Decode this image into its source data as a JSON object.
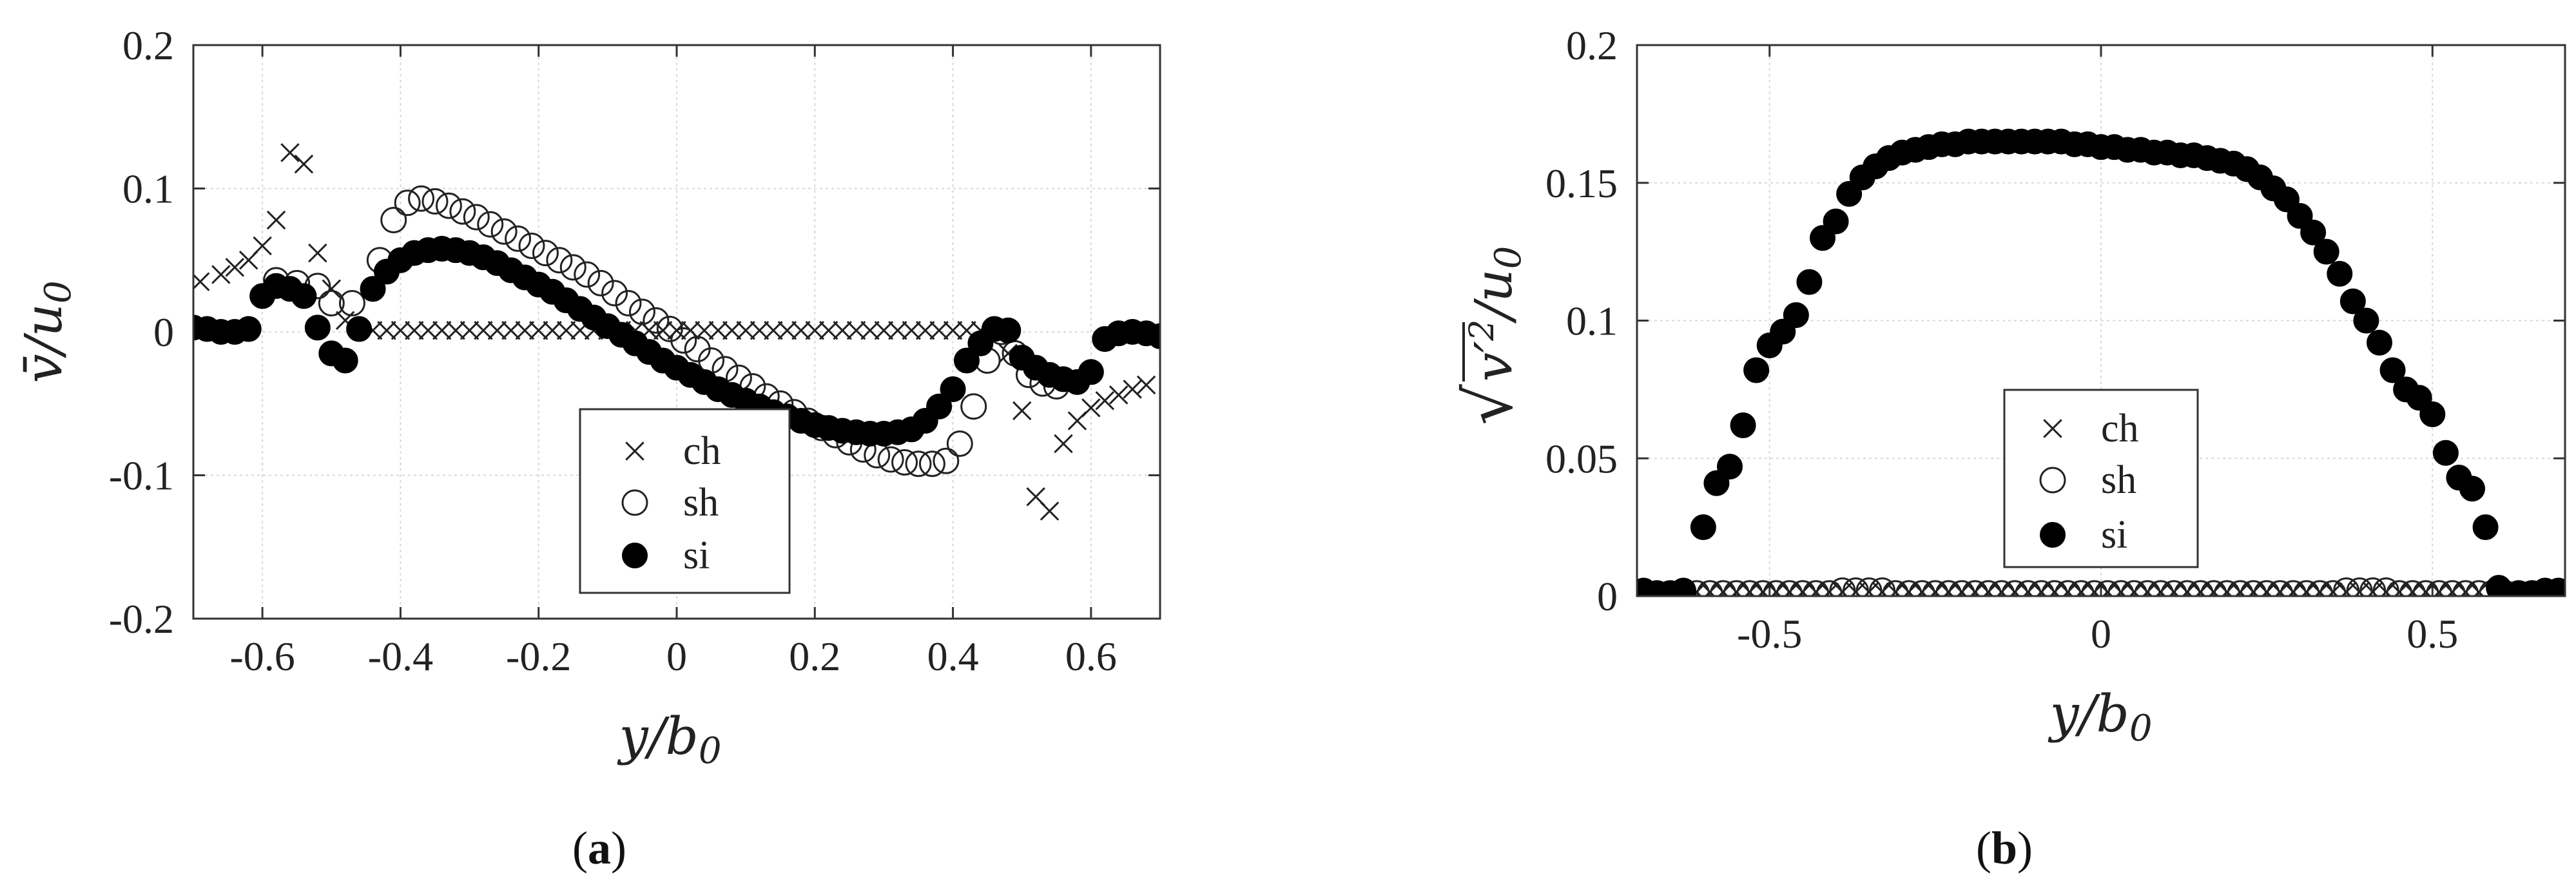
{
  "figure": {
    "panel_a": {
      "open": "(",
      "letter": "a",
      "close": ")"
    },
    "panel_b": {
      "open": "(",
      "letter": "b",
      "close": ")"
    }
  },
  "chart_data": [
    {
      "id": "a",
      "type": "scatter",
      "xlabel": "y/b0",
      "ylabel": "v̄/u0",
      "xlim": [
        -0.7,
        0.7
      ],
      "ylim": [
        -0.2,
        0.2
      ],
      "xticks": [
        -0.6,
        -0.4,
        -0.2,
        0,
        0.2,
        0.4,
        0.6
      ],
      "xtick_labels": [
        "-0.6",
        "-0.4",
        "-0.2",
        "0",
        "0.2",
        "0.4",
        "0.6"
      ],
      "yticks": [
        0.2,
        0.1,
        0,
        -0.1,
        -0.2
      ],
      "ytick_labels": [
        "0.2",
        "0.1",
        "0",
        "-0.1",
        "-0.2"
      ],
      "grid": true,
      "legend_position": "lower-center",
      "series": [
        {
          "name": "ch",
          "marker": "x",
          "x": [
            -0.69,
            -0.66,
            -0.64,
            -0.62,
            -0.6,
            -0.58,
            -0.56,
            -0.54,
            -0.52,
            -0.5,
            -0.48,
            -0.46,
            -0.44,
            -0.42,
            -0.4,
            -0.38,
            -0.36,
            -0.34,
            -0.32,
            -0.3,
            -0.28,
            -0.26,
            -0.24,
            -0.22,
            -0.2,
            -0.18,
            -0.16,
            -0.14,
            -0.12,
            -0.1,
            -0.08,
            -0.06,
            -0.04,
            -0.02,
            0,
            0.02,
            0.04,
            0.06,
            0.08,
            0.1,
            0.12,
            0.14,
            0.16,
            0.18,
            0.2,
            0.22,
            0.24,
            0.26,
            0.28,
            0.3,
            0.32,
            0.34,
            0.36,
            0.38,
            0.4,
            0.42,
            0.44,
            0.46,
            0.48,
            0.5,
            0.52,
            0.54,
            0.56,
            0.58,
            0.6,
            0.62,
            0.64,
            0.66,
            0.68
          ],
          "y": [
            0.035,
            0.04,
            0.045,
            0.05,
            0.06,
            0.078,
            0.125,
            0.117,
            0.055,
            0.03,
            0.008,
            0.002,
            0.001,
            0.001,
            0.001,
            0.001,
            0.001,
            0.001,
            0.001,
            0.001,
            0.001,
            0.001,
            0.001,
            0.001,
            0.001,
            0.001,
            0.001,
            0.001,
            0.001,
            0.001,
            0.001,
            0.001,
            0.001,
            0.001,
            0.001,
            0.001,
            0.001,
            0.001,
            0.001,
            0.001,
            0.001,
            0.001,
            0.001,
            0.001,
            0.001,
            0.001,
            0.001,
            0.001,
            0.001,
            0.001,
            0.001,
            0.001,
            0.001,
            0.001,
            0.001,
            0.001,
            0.001,
            0.001,
            -0.015,
            -0.055,
            -0.115,
            -0.125,
            -0.078,
            -0.062,
            -0.053,
            -0.048,
            -0.044,
            -0.04,
            -0.037
          ]
        },
        {
          "name": "sh",
          "marker": "open-circle",
          "x": [
            -0.58,
            -0.55,
            -0.52,
            -0.5,
            -0.47,
            -0.43,
            -0.41,
            -0.39,
            -0.37,
            -0.35,
            -0.33,
            -0.31,
            -0.29,
            -0.27,
            -0.25,
            -0.23,
            -0.21,
            -0.19,
            -0.17,
            -0.15,
            -0.13,
            -0.11,
            -0.09,
            -0.07,
            -0.05,
            -0.03,
            -0.01,
            0.01,
            0.03,
            0.05,
            0.07,
            0.09,
            0.11,
            0.13,
            0.15,
            0.17,
            0.19,
            0.21,
            0.23,
            0.25,
            0.27,
            0.29,
            0.31,
            0.33,
            0.35,
            0.37,
            0.39,
            0.41,
            0.43,
            0.45,
            0.47,
            0.49,
            0.51,
            0.53,
            0.55
          ],
          "y": [
            0.036,
            0.034,
            0.032,
            0.02,
            0.02,
            0.05,
            0.078,
            0.09,
            0.093,
            0.091,
            0.088,
            0.084,
            0.08,
            0.075,
            0.07,
            0.065,
            0.06,
            0.055,
            0.05,
            0.045,
            0.04,
            0.034,
            0.027,
            0.02,
            0.014,
            0.008,
            0.002,
            -0.006,
            -0.012,
            -0.02,
            -0.026,
            -0.032,
            -0.038,
            -0.045,
            -0.05,
            -0.056,
            -0.062,
            -0.067,
            -0.072,
            -0.077,
            -0.082,
            -0.086,
            -0.089,
            -0.091,
            -0.092,
            -0.092,
            -0.09,
            -0.078,
            -0.052,
            -0.02,
            0.0,
            -0.015,
            -0.03,
            -0.036,
            -0.038
          ]
        },
        {
          "name": "si",
          "marker": "filled-circle",
          "x": [
            -0.7,
            -0.68,
            -0.66,
            -0.64,
            -0.62,
            -0.6,
            -0.58,
            -0.56,
            -0.54,
            -0.52,
            -0.5,
            -0.48,
            -0.46,
            -0.44,
            -0.42,
            -0.4,
            -0.38,
            -0.36,
            -0.34,
            -0.32,
            -0.3,
            -0.28,
            -0.26,
            -0.24,
            -0.22,
            -0.2,
            -0.18,
            -0.16,
            -0.14,
            -0.12,
            -0.1,
            -0.08,
            -0.06,
            -0.04,
            -0.02,
            0,
            0.02,
            0.04,
            0.06,
            0.08,
            0.1,
            0.12,
            0.14,
            0.16,
            0.18,
            0.2,
            0.22,
            0.24,
            0.26,
            0.28,
            0.3,
            0.32,
            0.34,
            0.36,
            0.38,
            0.4,
            0.42,
            0.44,
            0.46,
            0.48,
            0.5,
            0.52,
            0.54,
            0.56,
            0.58,
            0.6,
            0.62,
            0.64,
            0.66,
            0.68,
            0.7
          ],
          "y": [
            0.003,
            0.002,
            0.0,
            0.0,
            0.002,
            0.025,
            0.032,
            0.03,
            0.025,
            0.003,
            -0.015,
            -0.02,
            0.002,
            0.03,
            0.042,
            0.05,
            0.055,
            0.057,
            0.058,
            0.057,
            0.055,
            0.052,
            0.048,
            0.043,
            0.038,
            0.033,
            0.028,
            0.022,
            0.016,
            0.01,
            0.004,
            -0.002,
            -0.008,
            -0.014,
            -0.02,
            -0.025,
            -0.03,
            -0.035,
            -0.04,
            -0.044,
            -0.048,
            -0.052,
            -0.056,
            -0.059,
            -0.062,
            -0.065,
            -0.067,
            -0.069,
            -0.07,
            -0.071,
            -0.071,
            -0.07,
            -0.068,
            -0.062,
            -0.052,
            -0.04,
            -0.02,
            -0.008,
            0.002,
            0.001,
            -0.018,
            -0.025,
            -0.03,
            -0.033,
            -0.035,
            -0.028,
            -0.005,
            -0.001,
            0.0,
            -0.001,
            -0.003
          ]
        }
      ]
    },
    {
      "id": "b",
      "type": "scatter",
      "xlabel": "y/b0",
      "ylabel": "√(v'²)/u0",
      "xlim": [
        -0.7,
        0.7
      ],
      "ylim": [
        0,
        0.2
      ],
      "xticks": [
        -0.5,
        0,
        0.5
      ],
      "xtick_labels": [
        "-0.5",
        "0",
        "0.5"
      ],
      "yticks": [
        0.2,
        0.15,
        0.1,
        0.05,
        0
      ],
      "ytick_labels": [
        "0.2",
        "0.15",
        "0.1",
        "0.05",
        "0"
      ],
      "grid": true,
      "legend_position": "lower-center",
      "series": [
        {
          "name": "ch",
          "marker": "x",
          "x": [
            -0.69,
            -0.67,
            -0.65,
            -0.63,
            -0.61,
            -0.59,
            -0.57,
            -0.55,
            -0.53,
            -0.51,
            -0.49,
            -0.47,
            -0.45,
            -0.43,
            -0.41,
            -0.39,
            -0.37,
            -0.35,
            -0.33,
            -0.31,
            -0.29,
            -0.27,
            -0.25,
            -0.23,
            -0.21,
            -0.19,
            -0.17,
            -0.15,
            -0.13,
            -0.11,
            -0.09,
            -0.07,
            -0.05,
            -0.03,
            -0.01,
            0.01,
            0.03,
            0.05,
            0.07,
            0.09,
            0.11,
            0.13,
            0.15,
            0.17,
            0.19,
            0.21,
            0.23,
            0.25,
            0.27,
            0.29,
            0.31,
            0.33,
            0.35,
            0.37,
            0.39,
            0.41,
            0.43,
            0.45,
            0.47,
            0.49,
            0.51,
            0.53,
            0.55,
            0.57,
            0.59,
            0.61,
            0.63,
            0.65,
            0.67,
            0.69
          ],
          "y": [
            0.0015,
            0.0015,
            0.0015,
            0.0015,
            0.0015,
            0.0015,
            0.0015,
            0.0015,
            0.0015,
            0.0015,
            0.0015,
            0.0015,
            0.0015,
            0.0015,
            0.0015,
            0.0015,
            0.0015,
            0.0015,
            0.0015,
            0.0015,
            0.0015,
            0.0015,
            0.0015,
            0.0015,
            0.0015,
            0.0015,
            0.0015,
            0.0015,
            0.0015,
            0.0015,
            0.0015,
            0.0015,
            0.0015,
            0.0015,
            0.0015,
            0.0015,
            0.0015,
            0.0015,
            0.0015,
            0.0015,
            0.0015,
            0.0015,
            0.0015,
            0.0015,
            0.0015,
            0.0015,
            0.0015,
            0.0015,
            0.0015,
            0.0015,
            0.0015,
            0.0015,
            0.0015,
            0.0015,
            0.0015,
            0.0015,
            0.0015,
            0.0015,
            0.0015,
            0.0015,
            0.0015,
            0.0015,
            0.0015,
            0.0015,
            0.0015,
            0.0015,
            0.0015,
            0.0015,
            0.0015,
            0.0015
          ]
        },
        {
          "name": "sh",
          "marker": "open-circle",
          "x": [
            -0.69,
            -0.67,
            -0.65,
            -0.63,
            -0.61,
            -0.59,
            -0.57,
            -0.55,
            -0.53,
            -0.51,
            -0.49,
            -0.47,
            -0.45,
            -0.43,
            -0.41,
            -0.39,
            -0.37,
            -0.35,
            -0.33,
            -0.31,
            -0.29,
            -0.27,
            -0.25,
            -0.23,
            -0.21,
            -0.19,
            -0.17,
            -0.15,
            -0.13,
            -0.11,
            -0.09,
            -0.07,
            -0.05,
            -0.03,
            -0.01,
            0.01,
            0.03,
            0.05,
            0.07,
            0.09,
            0.11,
            0.13,
            0.15,
            0.17,
            0.19,
            0.21,
            0.23,
            0.25,
            0.27,
            0.29,
            0.31,
            0.33,
            0.35,
            0.37,
            0.39,
            0.41,
            0.43,
            0.45,
            0.47,
            0.49,
            0.51,
            0.53,
            0.55,
            0.57,
            0.59,
            0.61,
            0.63,
            0.65,
            0.67,
            0.69
          ],
          "y": [
            0.001,
            0.001,
            0.001,
            0.001,
            0.001,
            0.001,
            0.001,
            0.001,
            0.001,
            0.001,
            0.001,
            0.001,
            0.001,
            0.001,
            0.001,
            0.002,
            0.002,
            0.002,
            0.002,
            0.001,
            0.001,
            0.001,
            0.001,
            0.001,
            0.001,
            0.001,
            0.001,
            0.001,
            0.001,
            0.001,
            0.001,
            0.001,
            0.001,
            0.001,
            0.001,
            0.001,
            0.001,
            0.001,
            0.001,
            0.001,
            0.001,
            0.001,
            0.001,
            0.001,
            0.001,
            0.001,
            0.001,
            0.001,
            0.001,
            0.001,
            0.001,
            0.001,
            0.001,
            0.002,
            0.002,
            0.002,
            0.002,
            0.001,
            0.001,
            0.001,
            0.001,
            0.001,
            0.001,
            0.001,
            0.001,
            0.001,
            0.001,
            0.001,
            0.001,
            0.001
          ]
        },
        {
          "name": "si",
          "marker": "filled-circle",
          "x": [
            -0.69,
            -0.67,
            -0.65,
            -0.63,
            -0.6,
            -0.58,
            -0.56,
            -0.54,
            -0.52,
            -0.5,
            -0.48,
            -0.46,
            -0.44,
            -0.42,
            -0.4,
            -0.38,
            -0.36,
            -0.34,
            -0.32,
            -0.3,
            -0.28,
            -0.26,
            -0.24,
            -0.22,
            -0.2,
            -0.18,
            -0.16,
            -0.14,
            -0.12,
            -0.1,
            -0.08,
            -0.06,
            -0.04,
            -0.02,
            0,
            0.02,
            0.04,
            0.06,
            0.08,
            0.1,
            0.12,
            0.14,
            0.16,
            0.18,
            0.2,
            0.22,
            0.24,
            0.26,
            0.28,
            0.3,
            0.32,
            0.34,
            0.36,
            0.38,
            0.4,
            0.42,
            0.44,
            0.46,
            0.48,
            0.5,
            0.52,
            0.54,
            0.56,
            0.58,
            0.6,
            0.63,
            0.65,
            0.67,
            0.69
          ],
          "y": [
            0.002,
            0.001,
            0.001,
            0.002,
            0.025,
            0.041,
            0.047,
            0.062,
            0.082,
            0.091,
            0.096,
            0.102,
            0.114,
            0.13,
            0.136,
            0.146,
            0.152,
            0.156,
            0.159,
            0.161,
            0.162,
            0.163,
            0.164,
            0.164,
            0.165,
            0.165,
            0.165,
            0.165,
            0.165,
            0.165,
            0.165,
            0.165,
            0.164,
            0.164,
            0.163,
            0.163,
            0.162,
            0.162,
            0.161,
            0.161,
            0.16,
            0.16,
            0.159,
            0.158,
            0.157,
            0.155,
            0.152,
            0.148,
            0.144,
            0.138,
            0.132,
            0.125,
            0.117,
            0.107,
            0.1,
            0.092,
            0.082,
            0.075,
            0.072,
            0.066,
            0.052,
            0.043,
            0.039,
            0.025,
            0.003,
            0.001,
            0.001,
            0.002,
            0.002
          ]
        }
      ]
    }
  ]
}
